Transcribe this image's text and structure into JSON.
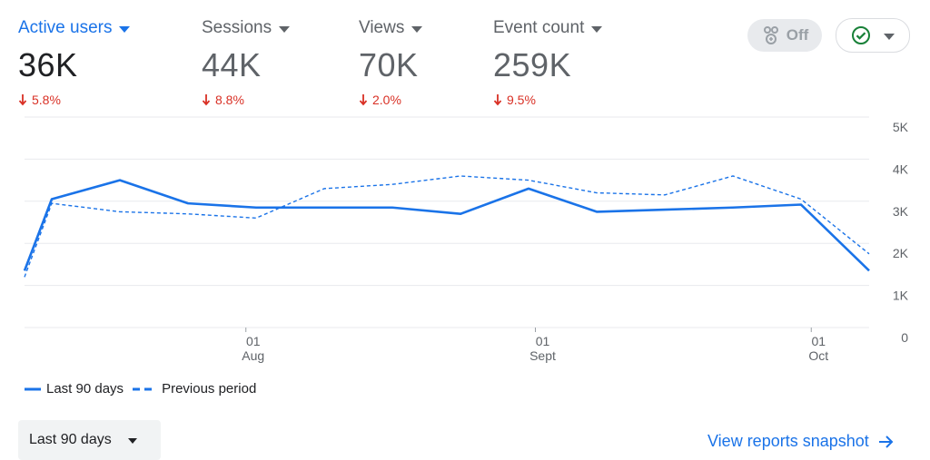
{
  "metrics": [
    {
      "label": "Active users",
      "value": "36K",
      "change": "5.8%",
      "active": true
    },
    {
      "label": "Sessions",
      "value": "44K",
      "change": "8.8%",
      "active": false
    },
    {
      "label": "Views",
      "value": "70K",
      "change": "2.0%",
      "active": false
    },
    {
      "label": "Event count",
      "value": "259K",
      "change": "9.5%",
      "active": false
    }
  ],
  "compare_toggle": {
    "label": "Off"
  },
  "colors": {
    "accent": "#1a73e8",
    "negative": "#d93025",
    "check": "#188038"
  },
  "chart_data": {
    "type": "line",
    "y_ticks": [
      "5K",
      "4K",
      "3K",
      "2K",
      "1K",
      "0"
    ],
    "ylim": [
      0,
      5000
    ],
    "x_ticks": [
      {
        "day": "01",
        "month": "Aug",
        "index": 3.25
      },
      {
        "day": "01",
        "month": "Sept",
        "index": 7.5
      },
      {
        "day": "01",
        "month": "Oct",
        "index": 11.55
      }
    ],
    "series": [
      {
        "name": "Last 90 days",
        "style": "solid",
        "values": [
          1350,
          3050,
          3500,
          2950,
          2850,
          2850,
          2850,
          2700,
          3300,
          2750,
          2800,
          2850,
          2920,
          1350
        ],
        "x_index": [
          0,
          0.4,
          1.4,
          2.4,
          3.4,
          4.4,
          5.4,
          6.4,
          7.4,
          8.4,
          9.4,
          10.4,
          11.4,
          12.4
        ]
      },
      {
        "name": "Previous period",
        "style": "dashed",
        "values": [
          1200,
          2950,
          2750,
          2700,
          2600,
          3300,
          3400,
          3600,
          3500,
          3200,
          3150,
          3600,
          3050,
          1750
        ],
        "x_index": [
          0,
          0.4,
          1.4,
          2.4,
          3.4,
          4.4,
          5.4,
          6.4,
          7.4,
          8.4,
          9.4,
          10.4,
          11.4,
          12.4
        ]
      }
    ]
  },
  "legend": [
    {
      "label": "Last 90 days",
      "style": "solid"
    },
    {
      "label": "Previous period",
      "style": "dashed"
    }
  ],
  "date_range": {
    "label": "Last 90 days"
  },
  "footer_link": {
    "label": "View reports snapshot"
  }
}
